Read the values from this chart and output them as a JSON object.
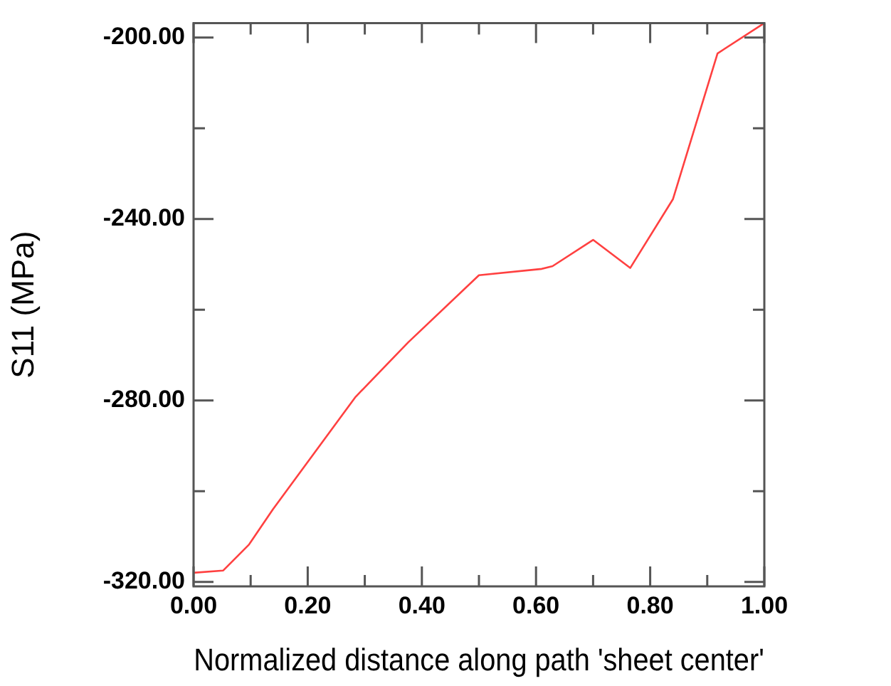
{
  "chart_data": {
    "type": "line",
    "xlabel": "Normalized distance along path 'sheet center'",
    "ylabel": "S11 (MPa)",
    "x": [
      0,
      0.052,
      0.097,
      0.139,
      0.284,
      0.376,
      0.5,
      0.61,
      0.629,
      0.7,
      0.765,
      0.84,
      0.918,
      1.0
    ],
    "series": [
      {
        "color": "#ff4040",
        "values": [
          -318.0,
          -317.5,
          -311.8,
          -304,
          -279.2,
          -267.2,
          -252.4,
          -251.0,
          -250.4,
          -244.6,
          -250.8,
          -235.6,
          -203.5,
          -196.8
        ]
      }
    ],
    "xlim": [
      0,
      1
    ],
    "ylim": [
      -321,
      -196.8
    ],
    "xticks": [
      {
        "value": 0,
        "label": "0.00"
      },
      {
        "value": 0.1,
        "label": null
      },
      {
        "value": 0.2,
        "label": "0.20"
      },
      {
        "value": 0.3,
        "label": null
      },
      {
        "value": 0.4,
        "label": "0.40"
      },
      {
        "value": 0.5,
        "label": null
      },
      {
        "value": 0.6,
        "label": "0.60"
      },
      {
        "value": 0.7,
        "label": null
      },
      {
        "value": 0.8,
        "label": "0.80"
      },
      {
        "value": 0.9,
        "label": null
      },
      {
        "value": 1.0,
        "label": "1.00"
      }
    ],
    "yticks": [
      {
        "value": -320,
        "label": "-320.00"
      },
      {
        "value": -300,
        "label": null
      },
      {
        "value": -280,
        "label": "-280.00"
      },
      {
        "value": -260,
        "label": null
      },
      {
        "value": -240,
        "label": "-240.00"
      },
      {
        "value": -220,
        "label": null
      },
      {
        "value": -200,
        "label": "-200.00"
      }
    ],
    "grid": false,
    "legend": false,
    "marker": "none",
    "line_style": "solid"
  }
}
